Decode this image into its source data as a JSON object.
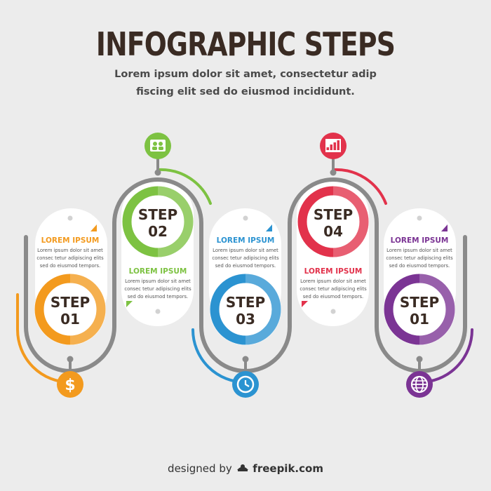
{
  "title": "INFOGRAPHIC STEPS",
  "subtitle_line1": "Lorem ipsum dolor sit amet, consectetur adip",
  "subtitle_line2": "fiscing elit sed do eiusmod  incididunt.",
  "footer": {
    "prefix": "designed by",
    "brand": "freepik.com",
    "logo_icon": "freepik-logo-icon"
  },
  "colors": {
    "orange": "#f39a1e",
    "green": "#7dc242",
    "blue": "#2b93d1",
    "red": "#e2324b",
    "purple": "#7b3494",
    "track": "#8a8a8a"
  },
  "steps": [
    {
      "word": "STEP",
      "number": "01",
      "color": "#f39a1e",
      "icon": "dollar-icon",
      "heading": "LOREM IPSUM",
      "lines": [
        "Lorem ipsum dolor sit amet",
        "consec tetur adipiscing  elits",
        "sed do eiusmod tempors."
      ]
    },
    {
      "word": "STEP",
      "number": "02",
      "color": "#7dc242",
      "icon": "people-icon",
      "heading": "LOREM IPSUM",
      "lines": [
        "Lorem ipsum dolor sit amet",
        "consec tetur adipiscing  elits",
        "sed do eiusmod tempors."
      ]
    },
    {
      "word": "STEP",
      "number": "03",
      "color": "#2b93d1",
      "icon": "clock-icon",
      "heading": "LOREM IPSUM",
      "lines": [
        "Lorem ipsum dolor sit amet",
        "consec tetur adipiscing  elits",
        "sed do eiusmod tempors."
      ]
    },
    {
      "word": "STEP",
      "number": "04",
      "color": "#e2324b",
      "icon": "bar-chart-icon",
      "heading": "LOREM IPSUM",
      "lines": [
        "Lorem ipsum dolor sit amet",
        "consec tetur adipiscing  elits",
        "sed do eiusmod tempors."
      ]
    },
    {
      "word": "STEP",
      "number": "01",
      "color": "#7b3494",
      "icon": "globe-icon",
      "heading": "LOREM IPSUM",
      "lines": [
        "Lorem ipsum dolor sit amet",
        "consec tetur adipiscing  elits",
        "sed do eiusmod tempors."
      ]
    }
  ]
}
